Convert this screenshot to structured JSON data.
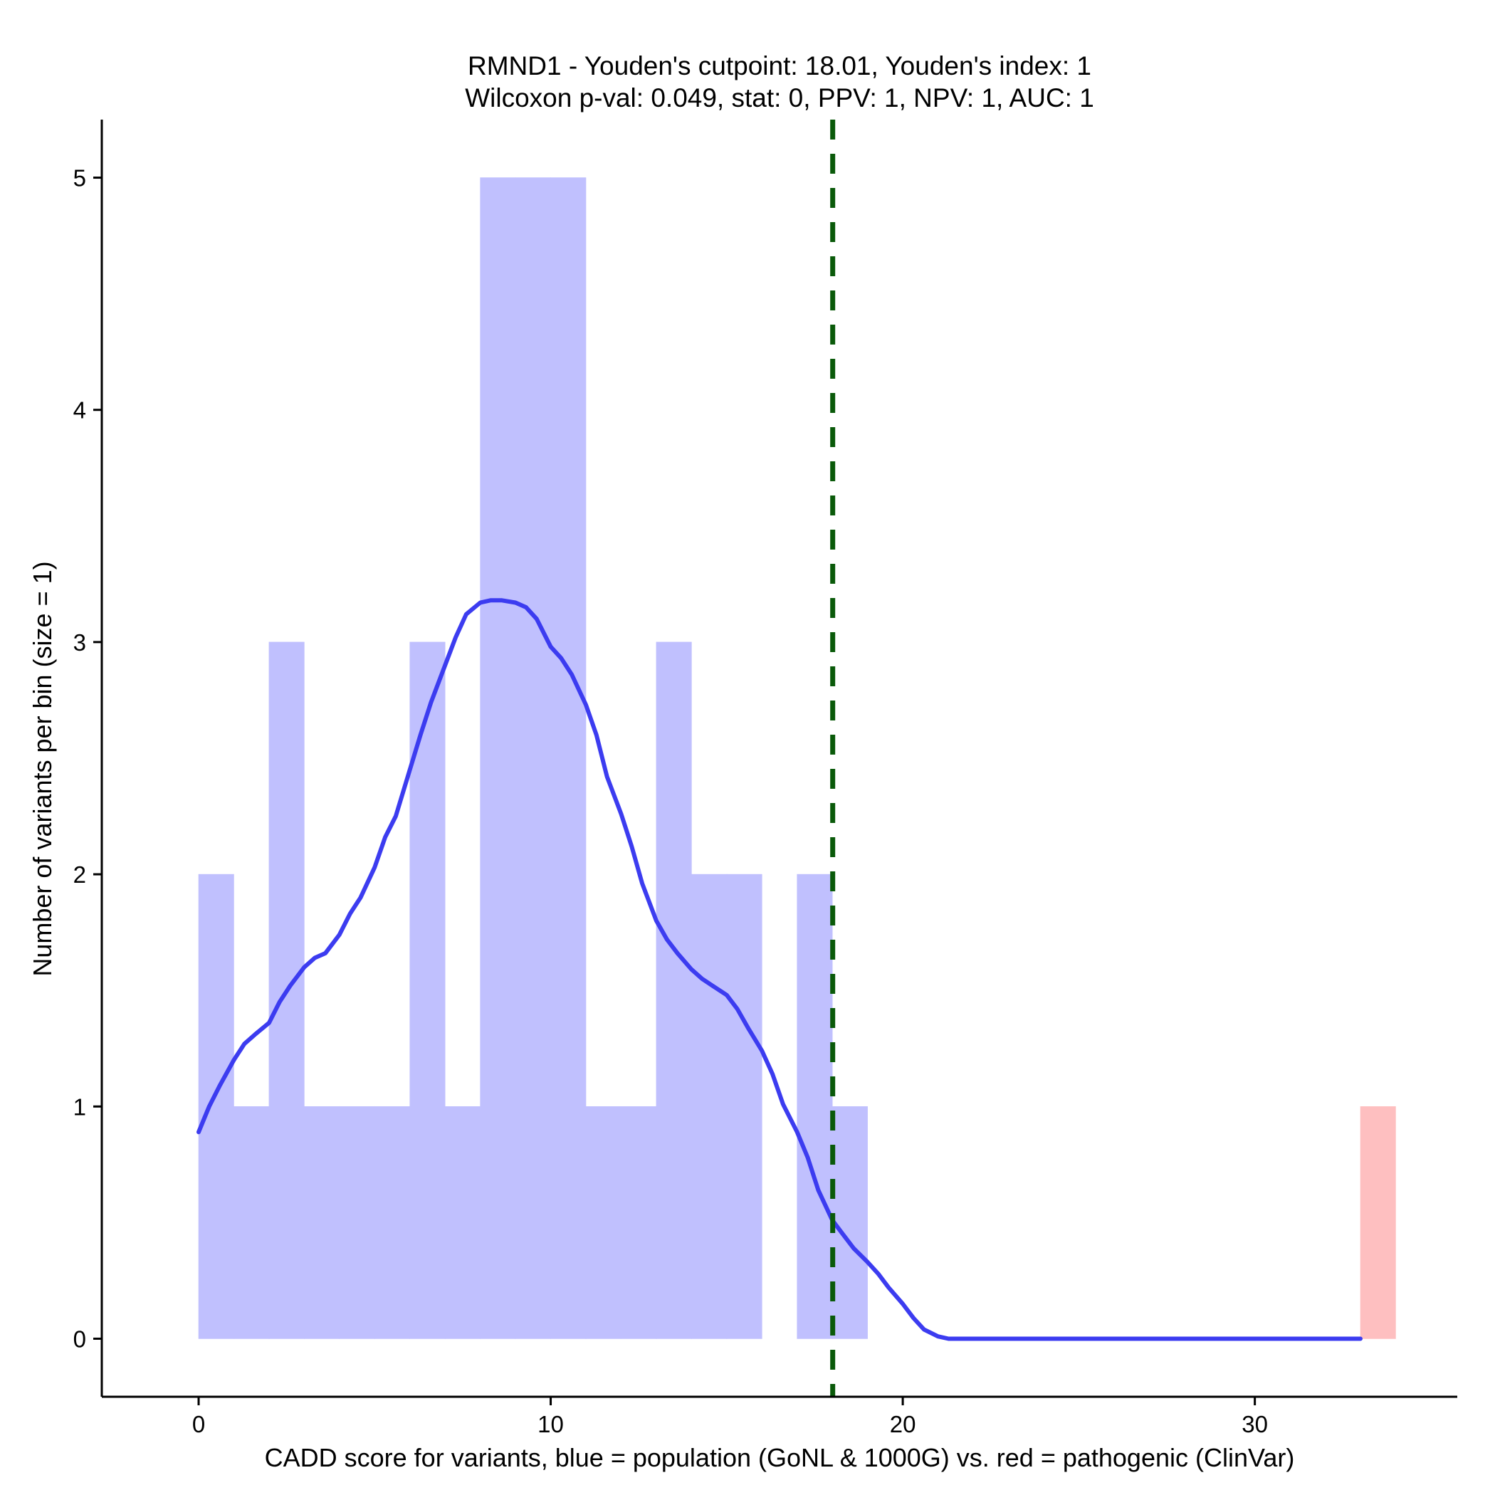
{
  "chart_data": {
    "type": "bar",
    "title_lines": [
      "RMND1 - Youden's cutpoint: 18.01, Youden's index: 1",
      "Wilcoxon p-val: 0.049, stat: 0, PPV: 1, NPV: 1, AUC: 1"
    ],
    "xlabel": "CADD score for variants, blue = population (GoNL & 1000G) vs. red = pathogenic (ClinVar)",
    "ylabel": "Number of variants per bin (size = 1)",
    "xlim": [
      -2.75,
      35.75
    ],
    "ylim": [
      -0.25,
      5.25
    ],
    "x_ticks": [
      0,
      10,
      20,
      30
    ],
    "y_ticks": [
      0,
      1,
      2,
      3,
      4,
      5
    ],
    "bin_size": 1,
    "grid": false,
    "legend": "none",
    "colors": {
      "population": "#c0c0fe",
      "pathogenic": "#febfc0",
      "density": "#3c3cf0",
      "cutpoint": "#0a5a0a"
    },
    "series": [
      {
        "color_key": "population",
        "bins": [
          {
            "start": 0,
            "end": 1,
            "count": 2
          },
          {
            "start": 1,
            "end": 2,
            "count": 1
          },
          {
            "start": 2,
            "end": 3,
            "count": 3
          },
          {
            "start": 3,
            "end": 4,
            "count": 1
          },
          {
            "start": 4,
            "end": 5,
            "count": 1
          },
          {
            "start": 5,
            "end": 6,
            "count": 1
          },
          {
            "start": 6,
            "end": 7,
            "count": 3
          },
          {
            "start": 7,
            "end": 8,
            "count": 1
          },
          {
            "start": 8,
            "end": 9,
            "count": 5
          },
          {
            "start": 9,
            "end": 10,
            "count": 5
          },
          {
            "start": 10,
            "end": 11,
            "count": 5
          },
          {
            "start": 11,
            "end": 12,
            "count": 1
          },
          {
            "start": 12,
            "end": 13,
            "count": 1
          },
          {
            "start": 13,
            "end": 14,
            "count": 3
          },
          {
            "start": 14,
            "end": 15,
            "count": 2
          },
          {
            "start": 15,
            "end": 16,
            "count": 2
          },
          {
            "start": 16,
            "end": 17,
            "count": 0
          },
          {
            "start": 17,
            "end": 18,
            "count": 2
          },
          {
            "start": 18,
            "end": 19,
            "count": 1
          }
        ]
      },
      {
        "color_key": "pathogenic",
        "bins": [
          {
            "start": 33,
            "end": 34,
            "count": 1
          }
        ]
      }
    ],
    "density_curve": {
      "x": [
        0,
        0.3,
        0.6,
        1.0,
        1.3,
        1.6,
        2.0,
        2.3,
        2.6,
        3.0,
        3.3,
        3.6,
        4.0,
        4.3,
        4.6,
        5.0,
        5.3,
        5.6,
        6.0,
        6.3,
        6.6,
        7.0,
        7.3,
        7.6,
        8.0,
        8.3,
        8.6,
        9.0,
        9.3,
        9.6,
        10.0,
        10.3,
        10.6,
        11.0,
        11.3,
        11.6,
        12.0,
        12.3,
        12.6,
        13.0,
        13.3,
        13.6,
        14.0,
        14.3,
        14.6,
        15.0,
        15.3,
        15.6,
        16.0,
        16.3,
        16.6,
        17.0,
        17.3,
        17.6,
        18.0,
        18.3,
        18.6,
        19.0,
        19.3,
        19.6,
        20.0,
        20.3,
        20.6,
        21.0,
        21.3,
        21.6,
        22.0,
        22.3,
        22.5,
        23.0,
        25.0,
        27.0,
        29.0,
        31.0,
        33.0
      ],
      "y": [
        0.89,
        1.0,
        1.09,
        1.2,
        1.27,
        1.31,
        1.36,
        1.45,
        1.52,
        1.6,
        1.64,
        1.66,
        1.74,
        1.83,
        1.9,
        2.03,
        2.16,
        2.25,
        2.45,
        2.6,
        2.74,
        2.9,
        3.02,
        3.12,
        3.17,
        3.18,
        3.18,
        3.17,
        3.15,
        3.1,
        2.98,
        2.93,
        2.86,
        2.73,
        2.6,
        2.42,
        2.26,
        2.12,
        1.96,
        1.8,
        1.72,
        1.66,
        1.59,
        1.55,
        1.52,
        1.48,
        1.42,
        1.34,
        1.24,
        1.14,
        1.01,
        0.89,
        0.78,
        0.64,
        0.51,
        0.45,
        0.39,
        0.33,
        0.28,
        0.22,
        0.15,
        0.09,
        0.04,
        0.01,
        0.0,
        0.0,
        0.0,
        0.0,
        0.0,
        0.0,
        0.0,
        0.0,
        0.0,
        0.0,
        0.0
      ]
    },
    "cutpoint": 18.01
  }
}
